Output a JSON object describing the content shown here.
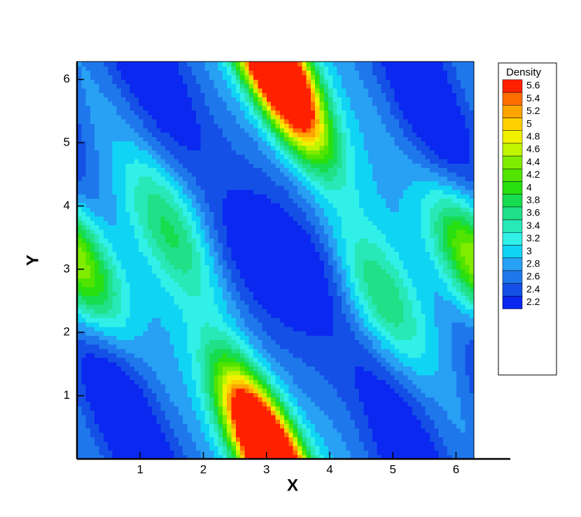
{
  "chart_data": {
    "type": "contour",
    "x_label": "X",
    "y_label": "Y",
    "legend_title": "Density",
    "levels": [
      2.2,
      2.4,
      2.6,
      2.8,
      3,
      3.2,
      3.4,
      3.6,
      3.8,
      4,
      4.2,
      4.4,
      4.6,
      4.8,
      5,
      5.2,
      5.4,
      5.6
    ],
    "colors": [
      "#0a28f0",
      "#1450e6",
      "#1e78ec",
      "#28a0f4",
      "#10d4f4",
      "#30f0e8",
      "#28e8b8",
      "#20e088",
      "#18dc50",
      "#28e010",
      "#50e400",
      "#80ec00",
      "#c0f400",
      "#f0f000",
      "#ffd000",
      "#ffa400",
      "#ff6c00",
      "#ff2000"
    ],
    "xlim": [
      0,
      6.2832
    ],
    "ylim": [
      0,
      6.2832
    ],
    "xticks": [
      1,
      2,
      3,
      4,
      5,
      6
    ],
    "yticks": [
      1,
      2,
      3,
      4,
      5,
      6
    ],
    "legend": "right"
  }
}
